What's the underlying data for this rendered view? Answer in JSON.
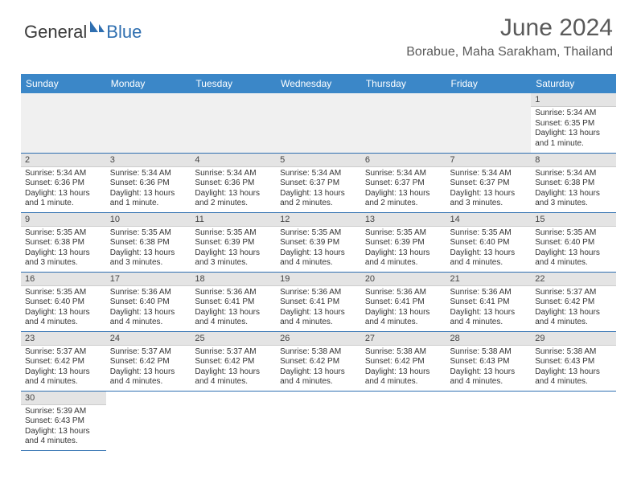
{
  "logo": {
    "general": "General",
    "blue": "Blue"
  },
  "title": "June 2024",
  "location": "Borabue, Maha Sarakham, Thailand",
  "colors": {
    "header_bg": "#3b87c8",
    "header_text": "#ffffff",
    "daynum_bg": "#e4e4e4",
    "row_border": "#2f6fb0",
    "empty_bg": "#f0f0f0",
    "text": "#333333",
    "title_color": "#5a5a5a"
  },
  "weekdays": [
    "Sunday",
    "Monday",
    "Tuesday",
    "Wednesday",
    "Thursday",
    "Friday",
    "Saturday"
  ],
  "weeks": [
    [
      null,
      null,
      null,
      null,
      null,
      null,
      {
        "n": "1",
        "sr": "Sunrise: 5:34 AM",
        "ss": "Sunset: 6:35 PM",
        "d1": "Daylight: 13 hours",
        "d2": "and 1 minute."
      }
    ],
    [
      {
        "n": "2",
        "sr": "Sunrise: 5:34 AM",
        "ss": "Sunset: 6:36 PM",
        "d1": "Daylight: 13 hours",
        "d2": "and 1 minute."
      },
      {
        "n": "3",
        "sr": "Sunrise: 5:34 AM",
        "ss": "Sunset: 6:36 PM",
        "d1": "Daylight: 13 hours",
        "d2": "and 1 minute."
      },
      {
        "n": "4",
        "sr": "Sunrise: 5:34 AM",
        "ss": "Sunset: 6:36 PM",
        "d1": "Daylight: 13 hours",
        "d2": "and 2 minutes."
      },
      {
        "n": "5",
        "sr": "Sunrise: 5:34 AM",
        "ss": "Sunset: 6:37 PM",
        "d1": "Daylight: 13 hours",
        "d2": "and 2 minutes."
      },
      {
        "n": "6",
        "sr": "Sunrise: 5:34 AM",
        "ss": "Sunset: 6:37 PM",
        "d1": "Daylight: 13 hours",
        "d2": "and 2 minutes."
      },
      {
        "n": "7",
        "sr": "Sunrise: 5:34 AM",
        "ss": "Sunset: 6:37 PM",
        "d1": "Daylight: 13 hours",
        "d2": "and 3 minutes."
      },
      {
        "n": "8",
        "sr": "Sunrise: 5:34 AM",
        "ss": "Sunset: 6:38 PM",
        "d1": "Daylight: 13 hours",
        "d2": "and 3 minutes."
      }
    ],
    [
      {
        "n": "9",
        "sr": "Sunrise: 5:35 AM",
        "ss": "Sunset: 6:38 PM",
        "d1": "Daylight: 13 hours",
        "d2": "and 3 minutes."
      },
      {
        "n": "10",
        "sr": "Sunrise: 5:35 AM",
        "ss": "Sunset: 6:38 PM",
        "d1": "Daylight: 13 hours",
        "d2": "and 3 minutes."
      },
      {
        "n": "11",
        "sr": "Sunrise: 5:35 AM",
        "ss": "Sunset: 6:39 PM",
        "d1": "Daylight: 13 hours",
        "d2": "and 3 minutes."
      },
      {
        "n": "12",
        "sr": "Sunrise: 5:35 AM",
        "ss": "Sunset: 6:39 PM",
        "d1": "Daylight: 13 hours",
        "d2": "and 4 minutes."
      },
      {
        "n": "13",
        "sr": "Sunrise: 5:35 AM",
        "ss": "Sunset: 6:39 PM",
        "d1": "Daylight: 13 hours",
        "d2": "and 4 minutes."
      },
      {
        "n": "14",
        "sr": "Sunrise: 5:35 AM",
        "ss": "Sunset: 6:40 PM",
        "d1": "Daylight: 13 hours",
        "d2": "and 4 minutes."
      },
      {
        "n": "15",
        "sr": "Sunrise: 5:35 AM",
        "ss": "Sunset: 6:40 PM",
        "d1": "Daylight: 13 hours",
        "d2": "and 4 minutes."
      }
    ],
    [
      {
        "n": "16",
        "sr": "Sunrise: 5:35 AM",
        "ss": "Sunset: 6:40 PM",
        "d1": "Daylight: 13 hours",
        "d2": "and 4 minutes."
      },
      {
        "n": "17",
        "sr": "Sunrise: 5:36 AM",
        "ss": "Sunset: 6:40 PM",
        "d1": "Daylight: 13 hours",
        "d2": "and 4 minutes."
      },
      {
        "n": "18",
        "sr": "Sunrise: 5:36 AM",
        "ss": "Sunset: 6:41 PM",
        "d1": "Daylight: 13 hours",
        "d2": "and 4 minutes."
      },
      {
        "n": "19",
        "sr": "Sunrise: 5:36 AM",
        "ss": "Sunset: 6:41 PM",
        "d1": "Daylight: 13 hours",
        "d2": "and 4 minutes."
      },
      {
        "n": "20",
        "sr": "Sunrise: 5:36 AM",
        "ss": "Sunset: 6:41 PM",
        "d1": "Daylight: 13 hours",
        "d2": "and 4 minutes."
      },
      {
        "n": "21",
        "sr": "Sunrise: 5:36 AM",
        "ss": "Sunset: 6:41 PM",
        "d1": "Daylight: 13 hours",
        "d2": "and 4 minutes."
      },
      {
        "n": "22",
        "sr": "Sunrise: 5:37 AM",
        "ss": "Sunset: 6:42 PM",
        "d1": "Daylight: 13 hours",
        "d2": "and 4 minutes."
      }
    ],
    [
      {
        "n": "23",
        "sr": "Sunrise: 5:37 AM",
        "ss": "Sunset: 6:42 PM",
        "d1": "Daylight: 13 hours",
        "d2": "and 4 minutes."
      },
      {
        "n": "24",
        "sr": "Sunrise: 5:37 AM",
        "ss": "Sunset: 6:42 PM",
        "d1": "Daylight: 13 hours",
        "d2": "and 4 minutes."
      },
      {
        "n": "25",
        "sr": "Sunrise: 5:37 AM",
        "ss": "Sunset: 6:42 PM",
        "d1": "Daylight: 13 hours",
        "d2": "and 4 minutes."
      },
      {
        "n": "26",
        "sr": "Sunrise: 5:38 AM",
        "ss": "Sunset: 6:42 PM",
        "d1": "Daylight: 13 hours",
        "d2": "and 4 minutes."
      },
      {
        "n": "27",
        "sr": "Sunrise: 5:38 AM",
        "ss": "Sunset: 6:42 PM",
        "d1": "Daylight: 13 hours",
        "d2": "and 4 minutes."
      },
      {
        "n": "28",
        "sr": "Sunrise: 5:38 AM",
        "ss": "Sunset: 6:43 PM",
        "d1": "Daylight: 13 hours",
        "d2": "and 4 minutes."
      },
      {
        "n": "29",
        "sr": "Sunrise: 5:38 AM",
        "ss": "Sunset: 6:43 PM",
        "d1": "Daylight: 13 hours",
        "d2": "and 4 minutes."
      }
    ],
    [
      {
        "n": "30",
        "sr": "Sunrise: 5:39 AM",
        "ss": "Sunset: 6:43 PM",
        "d1": "Daylight: 13 hours",
        "d2": "and 4 minutes."
      },
      null,
      null,
      null,
      null,
      null,
      null
    ]
  ]
}
